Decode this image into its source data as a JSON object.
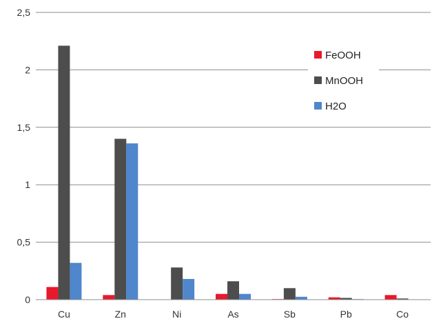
{
  "chart_data": {
    "type": "bar",
    "categories": [
      "Cu",
      "Zn",
      "Ni",
      "As",
      "Sb",
      "Pb",
      "Co"
    ],
    "series": [
      {
        "name": "FeOOH",
        "color": "#e8192c",
        "values": [
          0.11,
          0.04,
          0.0,
          0.05,
          0.005,
          0.02,
          0.04
        ]
      },
      {
        "name": "MnOOH",
        "color": "#4d4d4d",
        "values": [
          2.21,
          1.4,
          0.28,
          0.16,
          0.1,
          0.015,
          0.01
        ]
      },
      {
        "name": "H2O",
        "color": "#4f86cc",
        "values": [
          0.32,
          1.36,
          0.18,
          0.05,
          0.025,
          0.005,
          0.0
        ]
      }
    ],
    "y_ticks": [
      "0",
      "0,5",
      "1",
      "1,5",
      "2",
      "2,5"
    ],
    "ylim": [
      0,
      2.5
    ],
    "grid": true,
    "legend_position": "top-right"
  }
}
